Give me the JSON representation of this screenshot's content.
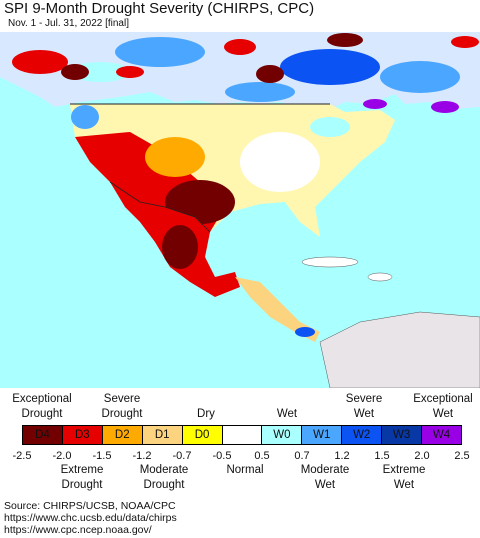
{
  "title": "SPI 9-Month Drought Severity (CHIRPS, CPC)",
  "subtitle": "Nov. 1 - Jul. 31, 2022 [final]",
  "colors": {
    "ocean": "#aaffff",
    "land_neutral": "#ffffff",
    "no_data": "#e8e4e8",
    "border": "#555555"
  },
  "legend": {
    "top_labels": [
      {
        "text": "Exceptional\nDrought"
      },
      {
        "text": "Severe\nDrought"
      },
      {
        "text": "Dry"
      },
      {
        "text": "Wet"
      },
      {
        "text": "Severe\nWet"
      },
      {
        "text": "Exceptional\nWet"
      }
    ],
    "categories": [
      {
        "label": "D4",
        "color": "#730000"
      },
      {
        "label": "D3",
        "color": "#e60000"
      },
      {
        "label": "D2",
        "color": "#ffaa00"
      },
      {
        "label": "D1",
        "color": "#fcd37f"
      },
      {
        "label": "D0",
        "color": "#ffff00"
      },
      {
        "label": "",
        "color": "#ffffff"
      },
      {
        "label": "W0",
        "color": "#aaffff"
      },
      {
        "label": "W1",
        "color": "#4ba6ff"
      },
      {
        "label": "W2",
        "color": "#0b53f2"
      },
      {
        "label": "W3",
        "color": "#0838a6"
      },
      {
        "label": "W4",
        "color": "#9a00e6"
      }
    ],
    "ticks": [
      "-2.5",
      "-2.0",
      "-1.5",
      "-1.2",
      "-0.7",
      "-0.5",
      "0.5",
      "0.7",
      "1.2",
      "1.5",
      "2.0",
      "2.5"
    ],
    "bottom_labels": [
      {
        "text": "Extreme\nDrought"
      },
      {
        "text": "Moderate\nDrought"
      },
      {
        "text": "Normal"
      },
      {
        "text": "Moderate\nWet"
      },
      {
        "text": "Extreme\nWet"
      }
    ]
  },
  "source_lines": [
    "Source: CHIRPS/UCSB, NOAA/CPC",
    "https://www.chc.ucsb.edu/data/chirps",
    "https://www.cpc.ncep.noaa.gov/"
  ]
}
